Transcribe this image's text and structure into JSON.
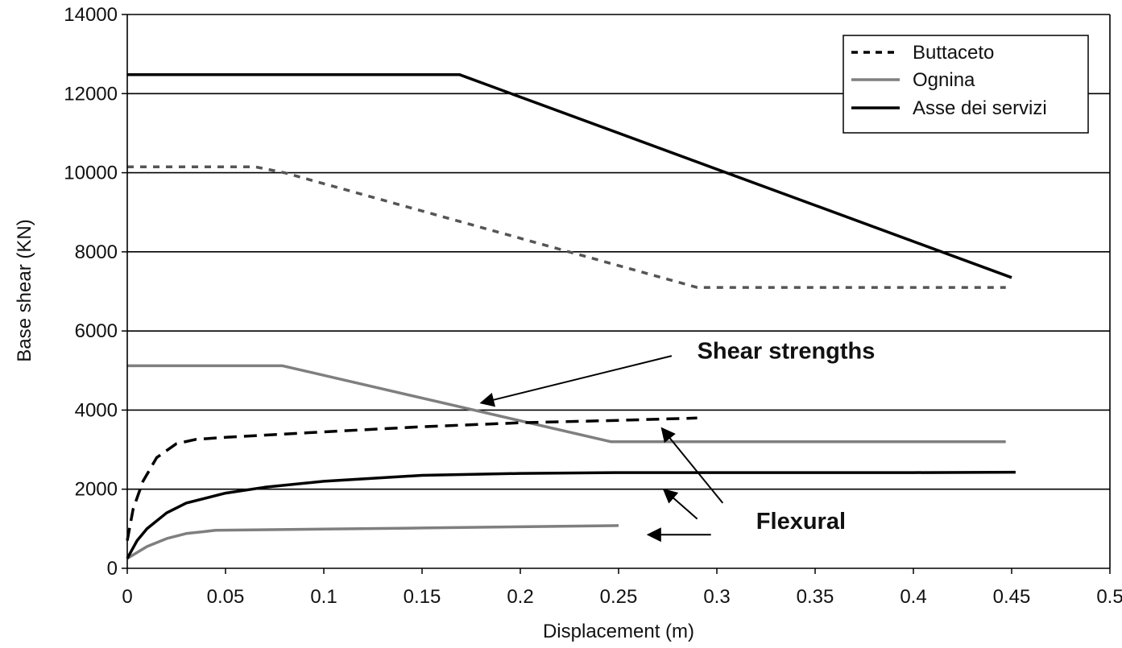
{
  "chart_data": {
    "type": "line",
    "xlabel": "Displacement (m)",
    "ylabel": "Base shear (KN)",
    "xlim": [
      0,
      0.5
    ],
    "ylim": [
      0,
      14000
    ],
    "xticks": [
      "0",
      "0.05",
      "0.1",
      "0.15",
      "0.2",
      "0.25",
      "0.3",
      "0.35",
      "0.4",
      "0.45",
      "0.5"
    ],
    "yticks": [
      "0",
      "2000",
      "4000",
      "6000",
      "8000",
      "10000",
      "12000",
      "14000"
    ],
    "grid": "horizontal",
    "legend_position": "top-right",
    "legend": [
      {
        "label": "Buttaceto",
        "color": "#000000",
        "style": "dashed"
      },
      {
        "label": "Ognina",
        "color": "#7f7f7f",
        "style": "solid"
      },
      {
        "label": "Asse dei servizi",
        "color": "#000000",
        "style": "solid"
      }
    ],
    "series": [
      {
        "name": "Buttaceto",
        "kind": "shear-strength",
        "color": "#555555",
        "style": "dashed",
        "x": [
          0,
          0.065,
          0.08,
          0.29,
          0.447
        ],
        "y": [
          10150,
          10150,
          10000,
          7100,
          7100
        ]
      },
      {
        "name": "Ognina",
        "kind": "shear-strength",
        "color": "#7f7f7f",
        "style": "solid",
        "x": [
          0,
          0.079,
          0.246,
          0.447
        ],
        "y": [
          5120,
          5120,
          3200,
          3200
        ]
      },
      {
        "name": "Asse dei servizi",
        "kind": "shear-strength",
        "color": "#000000",
        "style": "solid",
        "x": [
          0,
          0.169,
          0.45
        ],
        "y": [
          12480,
          12480,
          7350
        ]
      },
      {
        "name": "Buttaceto",
        "kind": "flexural",
        "color": "#000000",
        "style": "dashed",
        "x": [
          0,
          0.003,
          0.008,
          0.015,
          0.025,
          0.035,
          0.05,
          0.1,
          0.15,
          0.2,
          0.25,
          0.29
        ],
        "y": [
          700,
          1500,
          2200,
          2800,
          3150,
          3260,
          3310,
          3450,
          3580,
          3680,
          3740,
          3800
        ]
      },
      {
        "name": "Ognina",
        "kind": "flexural",
        "color": "#7f7f7f",
        "style": "solid",
        "x": [
          0,
          0.01,
          0.02,
          0.03,
          0.045,
          0.1,
          0.15,
          0.2,
          0.25
        ],
        "y": [
          250,
          550,
          750,
          880,
          960,
          990,
          1020,
          1050,
          1080
        ]
      },
      {
        "name": "Asse dei servizi",
        "kind": "flexural",
        "color": "#000000",
        "style": "solid",
        "x": [
          0,
          0.005,
          0.01,
          0.02,
          0.03,
          0.05,
          0.07,
          0.1,
          0.15,
          0.2,
          0.25,
          0.3,
          0.35,
          0.4,
          0.452
        ],
        "y": [
          250,
          700,
          1000,
          1400,
          1650,
          1900,
          2050,
          2200,
          2350,
          2400,
          2420,
          2420,
          2420,
          2420,
          2430
        ]
      }
    ],
    "annotations": [
      {
        "text": "Shear strengths",
        "x": 0.29,
        "y": 5300
      },
      {
        "text": "Flexural",
        "x": 0.32,
        "y": 1000
      }
    ],
    "arrows": [
      {
        "from": [
          0.277,
          5370
        ],
        "to": [
          0.18,
          4180
        ]
      },
      {
        "from": [
          0.303,
          1650
        ],
        "to": [
          0.272,
          3540
        ]
      },
      {
        "from": [
          0.29,
          1250
        ],
        "to": [
          0.273,
          1990
        ]
      },
      {
        "from": [
          0.297,
          850
        ],
        "to": [
          0.265,
          850
        ]
      }
    ]
  }
}
